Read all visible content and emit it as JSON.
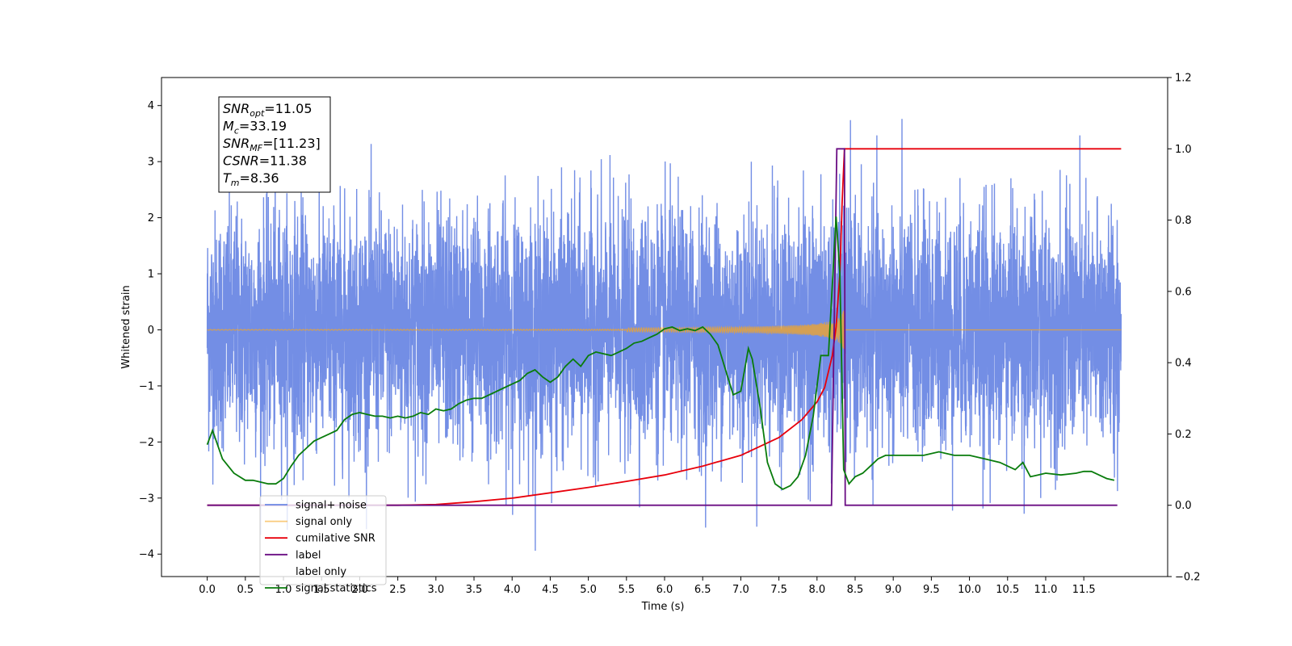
{
  "chart_data": {
    "type": "line",
    "xlabel": "Time (s)",
    "ylabel": "Whitened strain",
    "xlim": [
      -0.6,
      12.6
    ],
    "ylim": [
      -4.4,
      4.5
    ],
    "y2lim": [
      -0.2,
      1.2
    ],
    "x_ticks": [
      0.0,
      0.5,
      1.0,
      1.5,
      2.0,
      2.5,
      3.0,
      3.5,
      4.0,
      4.5,
      5.0,
      5.5,
      6.0,
      6.5,
      7.0,
      7.5,
      8.0,
      8.5,
      9.0,
      9.5,
      10.0,
      10.5,
      11.0,
      11.5
    ],
    "x_tick_labels": [
      "0.0",
      "0.5",
      "1.0",
      "1.5",
      "2.0",
      "2.5",
      "3.0",
      "3.5",
      "4.0",
      "4.5",
      "5.0",
      "5.5",
      "6.0",
      "6.5",
      "7.0",
      "7.5",
      "8.0",
      "8.5",
      "9.0",
      "9.5",
      "10.0",
      "10.5",
      "11.0",
      "11.5"
    ],
    "y_ticks": [
      -4,
      -3,
      -2,
      -1,
      0,
      1,
      2,
      3,
      4
    ],
    "y_tick_labels": [
      "−4",
      "−3",
      "−2",
      "−1",
      "0",
      "1",
      "2",
      "3",
      "4"
    ],
    "y2_ticks": [
      -0.2,
      0.0,
      0.2,
      0.4,
      0.6,
      0.8,
      1.0,
      1.2
    ],
    "y2_tick_labels": [
      "−0.2",
      "0.0",
      "0.2",
      "0.4",
      "0.6",
      "0.8",
      "1.0",
      "1.2"
    ],
    "grid": false,
    "legend_position": "bottom-left",
    "annotation": {
      "lines": [
        {
          "sym": "SNR",
          "sub": "opt",
          "value": "=11.05"
        },
        {
          "sym": "M",
          "sub": "c",
          "value": "=33.19"
        },
        {
          "sym": "SNR",
          "sub": "MF",
          "value": "=[11.23]"
        },
        {
          "sym": "CSNR",
          "sub": "",
          "value": "=11.38"
        },
        {
          "sym": "T",
          "sub": "m",
          "value": "=8.36"
        }
      ]
    },
    "noise": {
      "t_start": 0.0,
      "t_end": 11.99,
      "sigma": 1.0,
      "max": 4.1,
      "min": -3.95
    },
    "series": [
      {
        "name": "signal+ noise",
        "color": "#6c88e4",
        "axis": "left",
        "kind": "noise"
      },
      {
        "name": "signal only",
        "color": "#f5a623",
        "axis": "left",
        "kind": "chirp",
        "merger_time": 8.36,
        "peak_amplitude": 0.55
      },
      {
        "name": "cumilative SNR",
        "color": "#e8000b",
        "axis": "right",
        "x": [
          0.0,
          2.5,
          3.0,
          3.5,
          4.0,
          4.5,
          5.0,
          5.5,
          6.0,
          6.5,
          7.0,
          7.5,
          7.8,
          8.0,
          8.1,
          8.2,
          8.25,
          8.3,
          8.33,
          8.36,
          11.99
        ],
        "y": [
          0.0,
          0.0,
          0.002,
          0.01,
          0.02,
          0.035,
          0.05,
          0.067,
          0.085,
          0.11,
          0.14,
          0.19,
          0.24,
          0.29,
          0.33,
          0.42,
          0.5,
          0.65,
          0.85,
          1.0,
          1.0
        ]
      },
      {
        "name": "label",
        "color": "#6a0d83",
        "axis": "right",
        "x": [
          0.0,
          8.19,
          8.26,
          8.36,
          8.37,
          11.94
        ],
        "y": [
          0.0,
          0.0,
          1.0,
          1.0,
          0.0,
          0.0
        ]
      },
      {
        "name": "label only",
        "color": "#ffffff",
        "axis": "right",
        "x": [],
        "y": []
      },
      {
        "name": "signal statistics",
        "color": "#097c0c",
        "axis": "right",
        "x": [
          0.0,
          0.07,
          0.2,
          0.35,
          0.5,
          0.6,
          0.7,
          0.8,
          0.9,
          1.0,
          1.1,
          1.2,
          1.3,
          1.4,
          1.5,
          1.6,
          1.7,
          1.8,
          1.9,
          2.0,
          2.1,
          2.2,
          2.3,
          2.4,
          2.5,
          2.6,
          2.7,
          2.8,
          2.9,
          3.0,
          3.1,
          3.2,
          3.3,
          3.4,
          3.5,
          3.6,
          3.7,
          3.8,
          3.9,
          4.0,
          4.1,
          4.2,
          4.3,
          4.4,
          4.5,
          4.6,
          4.7,
          4.8,
          4.9,
          5.0,
          5.1,
          5.2,
          5.3,
          5.4,
          5.5,
          5.6,
          5.7,
          5.8,
          5.9,
          6.0,
          6.1,
          6.2,
          6.3,
          6.4,
          6.5,
          6.6,
          6.7,
          6.8,
          6.9,
          7.0,
          7.1,
          7.15,
          7.25,
          7.35,
          7.45,
          7.55,
          7.65,
          7.75,
          7.85,
          7.95,
          8.05,
          8.15,
          8.25,
          8.3,
          8.35,
          8.42,
          8.5,
          8.6,
          8.7,
          8.8,
          8.9,
          9.0,
          9.2,
          9.4,
          9.6,
          9.8,
          10.0,
          10.2,
          10.4,
          10.6,
          10.7,
          10.8,
          10.9,
          11.0,
          11.2,
          11.4,
          11.5,
          11.6,
          11.7,
          11.8,
          11.9
        ],
        "y": [
          0.17,
          0.21,
          0.13,
          0.09,
          0.07,
          0.07,
          0.065,
          0.06,
          0.06,
          0.075,
          0.11,
          0.14,
          0.16,
          0.18,
          0.19,
          0.2,
          0.21,
          0.24,
          0.255,
          0.26,
          0.255,
          0.25,
          0.25,
          0.245,
          0.25,
          0.245,
          0.25,
          0.26,
          0.255,
          0.27,
          0.265,
          0.27,
          0.285,
          0.295,
          0.3,
          0.3,
          0.31,
          0.32,
          0.33,
          0.34,
          0.35,
          0.37,
          0.38,
          0.36,
          0.345,
          0.36,
          0.39,
          0.41,
          0.39,
          0.42,
          0.43,
          0.425,
          0.42,
          0.43,
          0.44,
          0.455,
          0.46,
          0.47,
          0.48,
          0.495,
          0.5,
          0.49,
          0.495,
          0.49,
          0.5,
          0.48,
          0.45,
          0.38,
          0.31,
          0.32,
          0.44,
          0.41,
          0.28,
          0.12,
          0.06,
          0.045,
          0.055,
          0.08,
          0.14,
          0.25,
          0.42,
          0.42,
          0.81,
          0.65,
          0.1,
          0.06,
          0.08,
          0.09,
          0.11,
          0.13,
          0.14,
          0.14,
          0.14,
          0.14,
          0.15,
          0.14,
          0.14,
          0.13,
          0.12,
          0.1,
          0.12,
          0.08,
          0.085,
          0.09,
          0.085,
          0.09,
          0.095,
          0.095,
          0.085,
          0.075,
          0.07
        ]
      }
    ]
  }
}
